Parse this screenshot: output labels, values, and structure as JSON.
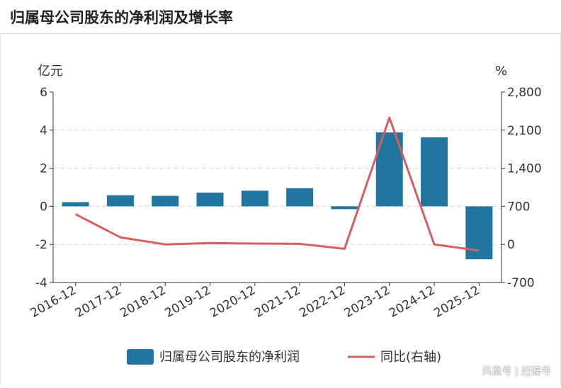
{
  "header": {
    "title": "归属母公司股东的净利润及增长率"
  },
  "chart_data": {
    "type": "bar+line",
    "categories": [
      "2016-12",
      "2017-12",
      "2018-12",
      "2019-12",
      "2020-12",
      "2021-12",
      "2022-12",
      "2023-12",
      "2024-12",
      "2025-12"
    ],
    "series": [
      {
        "name": "归属母公司股东的净利润",
        "type": "bar",
        "axis": "left",
        "values": [
          0.22,
          0.58,
          0.55,
          0.72,
          0.82,
          0.95,
          -0.15,
          3.88,
          3.62,
          -2.78
        ]
      },
      {
        "name": "同比(右轴)",
        "type": "line",
        "axis": "right",
        "values": [
          555,
          130,
          0,
          25,
          15,
          10,
          -80,
          2330,
          0,
          -115
        ]
      }
    ],
    "left_axis": {
      "unit": "亿元",
      "ylim": [
        -4,
        6
      ],
      "ticks": [
        "-4",
        "-2",
        "0",
        "2",
        "4",
        "6"
      ]
    },
    "right_axis": {
      "unit": "%",
      "ylim": [
        -700,
        2800
      ],
      "ticks": [
        "-700",
        "0",
        "700",
        "1,400",
        "2,100",
        "2,800"
      ]
    },
    "grid": true,
    "legend_position": "bottom",
    "colors": {
      "bar": "#21769f",
      "line": "#d45f60",
      "grid": "#d4d4d4",
      "axis": "#333333"
    }
  },
  "watermark": "风凰号 | 赶碟号"
}
